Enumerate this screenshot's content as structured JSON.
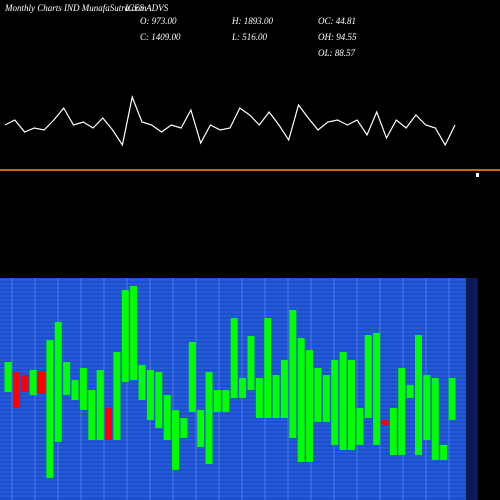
{
  "header": {
    "title": "Monthly Charts IND MunafaSutra.com",
    "ticker": "ICES ADVS",
    "stats": [
      "O: 973.00",
      "C: 1409.00",
      "H: 1893.00",
      "L: 516.00",
      "OC: 44.81",
      "OH: 94.55",
      "OL: 88.57"
    ]
  },
  "chart_data": [
    {
      "type": "line",
      "color": "#ffffff",
      "ylim": [
        0,
        55
      ],
      "values": [
        25,
        30,
        18,
        22,
        20,
        30,
        42,
        25,
        28,
        22,
        32,
        20,
        5,
        53,
        28,
        25,
        18,
        25,
        22,
        40,
        7,
        25,
        20,
        22,
        42,
        35,
        25,
        38,
        25,
        10,
        45,
        32,
        20,
        28,
        30,
        25,
        30,
        15,
        38,
        12,
        30,
        22,
        35,
        25,
        22,
        5,
        25
      ]
    },
    {
      "type": "candlestick",
      "up_color": "#00ff00",
      "down_color": "#ff0000",
      "ylim": [
        0,
        222
      ],
      "open": [
        108,
        128,
        125,
        105,
        129,
        22,
        58,
        105,
        100,
        90,
        60,
        60,
        92,
        60,
        118,
        120,
        100,
        80,
        72,
        60,
        30,
        62,
        88,
        53,
        36,
        88,
        88,
        102,
        102,
        110,
        82,
        82,
        82,
        82,
        62,
        38,
        38,
        78,
        78,
        55,
        50,
        50,
        55,
        82,
        55,
        80,
        45,
        45,
        102,
        45,
        60,
        40,
        40,
        80
      ],
      "close": [
        138,
        92,
        108,
        130,
        107,
        160,
        178,
        138,
        120,
        132,
        110,
        130,
        60,
        148,
        210,
        214,
        135,
        130,
        128,
        105,
        90,
        82,
        158,
        90,
        128,
        110,
        110,
        182,
        122,
        164,
        122,
        182,
        125,
        140,
        190,
        162,
        150,
        132,
        125,
        140,
        148,
        140,
        92,
        165,
        167,
        75,
        92,
        132,
        115,
        165,
        125,
        122,
        55,
        122
      ]
    }
  ]
}
